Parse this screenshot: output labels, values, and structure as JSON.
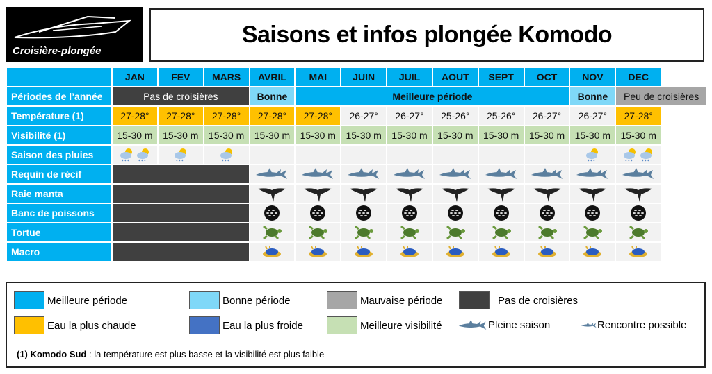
{
  "logo": {
    "text": "Croisière-plongée"
  },
  "title": "Saisons et infos plongée Komodo",
  "months": [
    "JAN",
    "FEV",
    "MARS",
    "AVRIL",
    "MAI",
    "JUIN",
    "JUIL",
    "AOUT",
    "SEPT",
    "OCT",
    "NOV",
    "DEC"
  ],
  "rows": {
    "periods": {
      "label": "Périodes de l’année",
      "segments": [
        {
          "text": "Pas de croisières",
          "span": 3,
          "kind": "none"
        },
        {
          "text": "Bonne",
          "span": 1,
          "kind": "good"
        },
        {
          "text": "Meilleure période",
          "span": 6,
          "kind": "best"
        },
        {
          "text": "Bonne",
          "span": 1,
          "kind": "good"
        },
        {
          "text": "Peu de croisières",
          "span": 2,
          "kind": "bad"
        }
      ]
    },
    "temperature": {
      "label": "Température (1)",
      "values": [
        "27-28°",
        "27-28°",
        "27-28°",
        "27-28°",
        "27-28°",
        "26-27°",
        "26-27°",
        "25-26°",
        "25-26°",
        "26-27°",
        "26-27°",
        "27-28°"
      ],
      "warm": [
        true,
        true,
        true,
        true,
        true,
        false,
        false,
        false,
        false,
        false,
        false,
        true
      ]
    },
    "visibility": {
      "label": "Visibilité (1)",
      "values": [
        "15-30 m",
        "15-30 m",
        "15-30 m",
        "15-30 m",
        "15-30 m",
        "15-30 m",
        "15-30 m",
        "15-30 m",
        "15-30 m",
        "15-30 m",
        "15-30 m",
        "15-30 m"
      ]
    },
    "rain": {
      "label": "Saison des pluies",
      "icon": "rain-cloud-sun-icon",
      "counts": [
        2,
        1,
        1,
        0,
        0,
        0,
        0,
        0,
        0,
        0,
        1,
        2
      ]
    },
    "species": [
      {
        "label": "Requin de récif",
        "icon": "shark-icon"
      },
      {
        "label": "Raie manta",
        "icon": "manta-ray-icon"
      },
      {
        "label": "Banc de poissons",
        "icon": "fish-school-icon"
      },
      {
        "label": "Tortue",
        "icon": "turtle-icon"
      },
      {
        "label": "Macro",
        "icon": "nudibranch-icon"
      }
    ]
  },
  "legend": {
    "items": [
      {
        "label": "Meilleure période",
        "color": "#00b0f0"
      },
      {
        "label": "Bonne période",
        "color": "#7fd8f8"
      },
      {
        "label": "Mauvaise période",
        "color": "#a6a6a6"
      },
      {
        "label": "Pas de croisières",
        "color": "#404040"
      },
      {
        "label": "Eau la plus chaude",
        "color": "#ffc000"
      },
      {
        "label": "Eau la plus froide",
        "color": "#4472c4"
      },
      {
        "label": "Meilleure visibilité",
        "color": "#c6e0b4"
      }
    ],
    "full_season": "Pleine saison",
    "possible": "Rencontre possible",
    "note_bold": "(1) Komodo Sud",
    "note_text": " : la température est plus basse et la visibilité est plus faible"
  }
}
